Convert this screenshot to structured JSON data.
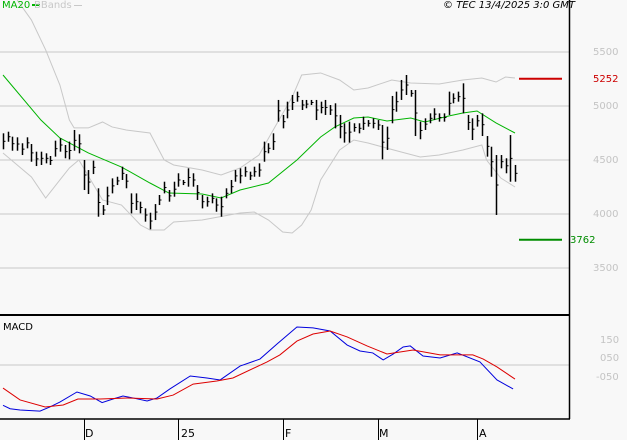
{
  "header": {
    "ma_legend": "MA20",
    "bb_legend": "BBands",
    "copyright": "© TEC 13/4/2025 3:0 GMT"
  },
  "colors": {
    "background": "#f8f8f8",
    "grid": "#c8c8c8",
    "bars": "#000000",
    "ma20": "#00b400",
    "bbands": "#c8c8c8",
    "resistance": "#cc0000",
    "support": "#008c00",
    "macd": "#0000dd",
    "signal": "#dd0000"
  },
  "levels": {
    "resistance": {
      "value": 5252,
      "label": "5252"
    },
    "support": {
      "value": 3762,
      "label": "3762"
    }
  },
  "macd_panel": {
    "title": "MACD",
    "tick_labels": [
      {
        "value": 1.5,
        "label": "150"
      },
      {
        "value": 0.5,
        "label": "050"
      },
      {
        "value": -0.5,
        "label": "-050"
      }
    ]
  },
  "chart_data": {
    "type": "bar",
    "price_axis": {
      "ticks": [
        5500,
        5000,
        4500,
        4000,
        3500
      ],
      "tick_labels": [
        "5500",
        "5000",
        "4500",
        "4000",
        "3500"
      ],
      "grid": true
    },
    "x_tick_labels": [
      {
        "bar": 17,
        "label": "D"
      },
      {
        "bar": 37,
        "label": "25"
      },
      {
        "bar": 59,
        "label": "F"
      },
      {
        "bar": 79,
        "label": "M"
      },
      {
        "bar": 100,
        "label": "A"
      }
    ],
    "highs": [
      4747,
      4762,
      4716,
      4710,
      4655,
      4710,
      4648,
      4577,
      4577,
      4562,
      4537,
      4679,
      4701,
      4639,
      4670,
      4778,
      4738,
      4500,
      4407,
      4494,
      4238,
      4083,
      4253,
      4330,
      4345,
      4438,
      4370,
      4191,
      4191,
      4114,
      4052,
      4012,
      4092,
      4176,
      4299,
      4222,
      4299,
      4377,
      4315,
      4423,
      4377,
      4268,
      4176,
      4160,
      4191,
      4145,
      4160,
      4238,
      4315,
      4407,
      4423,
      4438,
      4392,
      4438,
      4469,
      4670,
      4655,
      4747,
      5056,
      4917,
      5040,
      5102,
      5133,
      5056,
      5056,
      5056,
      5056,
      5040,
      5056,
      5009,
      5025,
      4917,
      4840,
      4855,
      4840,
      4840,
      4901,
      4870,
      4886,
      4870,
      4824,
      4809,
      5093,
      5133,
      5241,
      5287,
      5148,
      5148,
      4855,
      4886,
      4932,
      4979,
      4932,
      4932,
      5133,
      5117,
      5133,
      5210,
      4917,
      4886,
      4917,
      4932,
      4722,
      4623,
      4546,
      4546,
      4516,
      4731,
      4454
    ],
    "lows": [
      4599,
      4669,
      4586,
      4586,
      4546,
      4608,
      4484,
      4444,
      4454,
      4469,
      4454,
      4531,
      4577,
      4516,
      4506,
      4586,
      4562,
      4222,
      4185,
      4370,
      3975,
      3991,
      4083,
      4191,
      4268,
      4315,
      4238,
      4006,
      4037,
      4006,
      3929,
      3858,
      3944,
      4083,
      4191,
      4114,
      4160,
      4253,
      4268,
      4253,
      4253,
      4130,
      4052,
      4068,
      4099,
      4021,
      3975,
      4145,
      4191,
      4299,
      4284,
      4345,
      4315,
      4345,
      4345,
      4484,
      4562,
      4593,
      4855,
      4793,
      4886,
      4963,
      5040,
      4963,
      4979,
      5009,
      4870,
      4932,
      4917,
      4917,
      4793,
      4701,
      4661,
      4661,
      4762,
      4747,
      4778,
      4809,
      4793,
      4778,
      4506,
      4593,
      4840,
      4947,
      5056,
      5102,
      5086,
      4722,
      4692,
      4778,
      4840,
      4870,
      4855,
      4855,
      4917,
      5025,
      5040,
      4932,
      4778,
      4685,
      4809,
      4722,
      4531,
      4345,
      3991,
      4423,
      4377,
      4299,
      4299
    ],
    "series": [
      {
        "name": "MA20",
        "points": [
          [
            0,
            5287
          ],
          [
            8,
            4870
          ],
          [
            12,
            4704
          ],
          [
            18,
            4565
          ],
          [
            25,
            4435
          ],
          [
            31,
            4287
          ],
          [
            35,
            4194
          ],
          [
            42,
            4185
          ],
          [
            46,
            4148
          ],
          [
            50,
            4222
          ],
          [
            56,
            4287
          ],
          [
            62,
            4500
          ],
          [
            67,
            4713
          ],
          [
            70,
            4806
          ],
          [
            74,
            4889
          ],
          [
            77,
            4898
          ],
          [
            81,
            4861
          ],
          [
            86,
            4889
          ],
          [
            89,
            4852
          ],
          [
            94,
            4907
          ],
          [
            97,
            4935
          ],
          [
            100,
            4954
          ],
          [
            104,
            4843
          ],
          [
            108,
            4750
          ]
        ]
      },
      {
        "name": "BBands",
        "band": "upper",
        "points": [
          [
            3,
            5981
          ],
          [
            6,
            5796
          ],
          [
            9,
            5519
          ],
          [
            12,
            5194
          ],
          [
            14,
            4870
          ],
          [
            15,
            4797
          ],
          [
            18,
            4797
          ],
          [
            21,
            4852
          ],
          [
            23,
            4806
          ],
          [
            26,
            4778
          ],
          [
            31,
            4750
          ],
          [
            34,
            4500
          ],
          [
            36,
            4454
          ],
          [
            42,
            4407
          ],
          [
            46,
            4361
          ],
          [
            50,
            4426
          ],
          [
            54,
            4546
          ],
          [
            57,
            4778
          ],
          [
            61,
            5083
          ],
          [
            63,
            5287
          ],
          [
            67,
            5306
          ],
          [
            71,
            5241
          ],
          [
            74,
            5148
          ],
          [
            77,
            5167
          ],
          [
            82,
            5241
          ],
          [
            86,
            5213
          ],
          [
            92,
            5204
          ],
          [
            97,
            5241
          ],
          [
            101,
            5259
          ],
          [
            104,
            5222
          ],
          [
            106,
            5268
          ],
          [
            108,
            5259
          ]
        ]
      },
      {
        "name": "BBands",
        "band": "lower",
        "points": [
          [
            0,
            4565
          ],
          [
            3,
            4454
          ],
          [
            6,
            4343
          ],
          [
            9,
            4148
          ],
          [
            12,
            4315
          ],
          [
            14,
            4426
          ],
          [
            16,
            4500
          ],
          [
            21,
            4130
          ],
          [
            25,
            4083
          ],
          [
            29,
            3898
          ],
          [
            31,
            3852
          ],
          [
            34,
            3852
          ],
          [
            36,
            3926
          ],
          [
            42,
            3944
          ],
          [
            50,
            4009
          ],
          [
            53,
            4018
          ],
          [
            56,
            3944
          ],
          [
            59,
            3833
          ],
          [
            61,
            3824
          ],
          [
            63,
            3898
          ],
          [
            65,
            4037
          ],
          [
            67,
            4315
          ],
          [
            71,
            4593
          ],
          [
            74,
            4685
          ],
          [
            77,
            4657
          ],
          [
            84,
            4574
          ],
          [
            88,
            4528
          ],
          [
            92,
            4546
          ],
          [
            97,
            4593
          ],
          [
            101,
            4639
          ],
          [
            102,
            4500
          ],
          [
            105,
            4333
          ],
          [
            108,
            4250
          ]
        ]
      },
      {
        "name": "MACD",
        "points": [
          [
            0,
            -2.24
          ],
          [
            1.5,
            -2.43
          ],
          [
            3.6,
            -2.5
          ],
          [
            7.8,
            -2.56
          ],
          [
            9.9,
            -2.33
          ],
          [
            12,
            -2.06
          ],
          [
            15.6,
            -1.5
          ],
          [
            18.4,
            -1.72
          ],
          [
            20.9,
            -2.09
          ],
          [
            23.2,
            -1.89
          ],
          [
            25.3,
            -1.72
          ],
          [
            27.4,
            -1.83
          ],
          [
            30.4,
            -2.0
          ],
          [
            32.5,
            -1.83
          ],
          [
            35.2,
            -1.33
          ],
          [
            39.5,
            -0.61
          ],
          [
            43,
            -0.72
          ],
          [
            45.8,
            -0.83
          ],
          [
            50,
            -0.06
          ],
          [
            54.2,
            0.33
          ],
          [
            57.8,
            1.17
          ],
          [
            62,
            2.11
          ],
          [
            65.4,
            2.06
          ],
          [
            69,
            1.89
          ],
          [
            72.6,
            1.11
          ],
          [
            75.3,
            0.78
          ],
          [
            78,
            0.67
          ],
          [
            80.2,
            0.28
          ],
          [
            82.3,
            0.61
          ],
          [
            84.4,
            1.0
          ],
          [
            85.9,
            1.06
          ],
          [
            88.6,
            0.5
          ],
          [
            92.2,
            0.39
          ],
          [
            95.8,
            0.67
          ],
          [
            100.6,
            0.17
          ],
          [
            104.2,
            -0.83
          ],
          [
            107.6,
            -1.33
          ]
        ]
      },
      {
        "name": "Signal",
        "points": [
          [
            0,
            -1.28
          ],
          [
            3.6,
            -1.94
          ],
          [
            8.9,
            -2.33
          ],
          [
            12.7,
            -2.22
          ],
          [
            15.8,
            -1.89
          ],
          [
            20.5,
            -1.89
          ],
          [
            26.2,
            -1.83
          ],
          [
            32.5,
            -1.89
          ],
          [
            35.9,
            -1.67
          ],
          [
            40.1,
            -1.06
          ],
          [
            45.1,
            -0.89
          ],
          [
            48.5,
            -0.72
          ],
          [
            55.7,
            0.17
          ],
          [
            58.4,
            0.56
          ],
          [
            62,
            1.33
          ],
          [
            65.4,
            1.72
          ],
          [
            69,
            1.89
          ],
          [
            72.6,
            1.56
          ],
          [
            76.8,
            1.06
          ],
          [
            81,
            0.61
          ],
          [
            86.5,
            0.83
          ],
          [
            92.2,
            0.56
          ],
          [
            99.1,
            0.56
          ],
          [
            101.3,
            0.33
          ],
          [
            104.2,
            -0.11
          ],
          [
            108,
            -0.78
          ]
        ]
      }
    ]
  }
}
